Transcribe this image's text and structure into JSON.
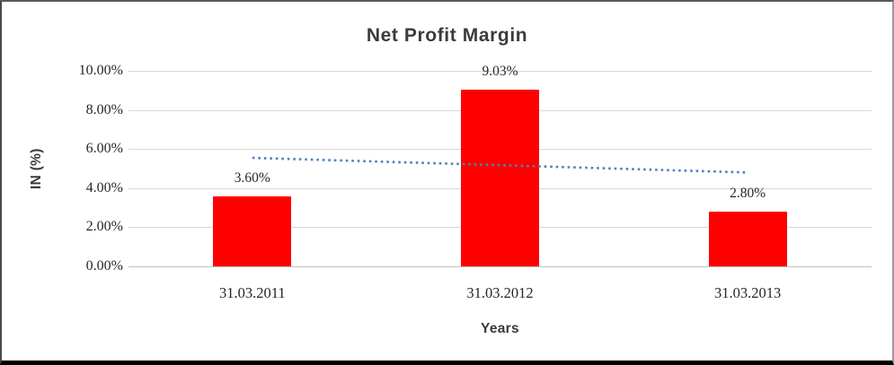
{
  "chart_data": {
    "type": "bar",
    "title": "Net Profit Margin",
    "xlabel": "Years",
    "ylabel": "IN (%)",
    "categories": [
      "31.03.2011",
      "31.03.2012",
      "31.03.2013"
    ],
    "values": [
      3.6,
      9.03,
      2.8
    ],
    "data_labels": [
      "3.60%",
      "9.03%",
      "2.80%"
    ],
    "ylim": [
      0,
      10
    ],
    "ytick_step": 2,
    "ytick_labels": [
      "0.00%",
      "2.00%",
      "4.00%",
      "6.00%",
      "8.00%",
      "10.00%"
    ],
    "grid": true,
    "legend": "none",
    "bar_color": "#FF0000",
    "trendline": {
      "type": "linear",
      "style": "dotted",
      "color": "#4F81BD",
      "start_value": 5.55,
      "end_value": 4.8
    }
  }
}
